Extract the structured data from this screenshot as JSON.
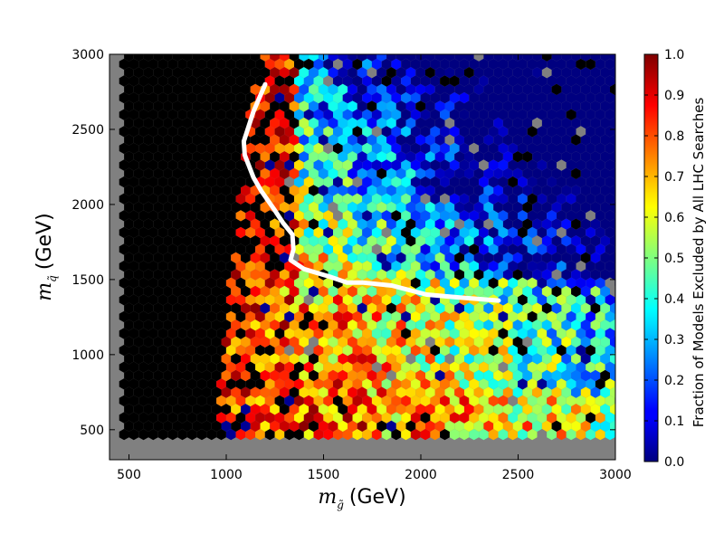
{
  "chart_data": {
    "type": "heatmap",
    "subtype": "hexbin",
    "title": "",
    "xlabel": {
      "symbol": "m",
      "subscript": "g̃",
      "unit": "(GeV)"
    },
    "ylabel": {
      "symbol": "m",
      "subscript": "q̃",
      "unit": "(GeV)"
    },
    "xlim": [
      400,
      3000
    ],
    "ylim": [
      300,
      3000
    ],
    "x_ticks": [
      "500",
      "1000",
      "1500",
      "2000",
      "2500",
      "3000"
    ],
    "y_ticks": [
      "500",
      "1000",
      "1500",
      "2000",
      "2500",
      "3000"
    ],
    "grid": false,
    "background_color": "#808080",
    "colorbar": {
      "label": "Fraction of Models Excluded by All LHC Searches",
      "range": [
        0.0,
        1.0
      ],
      "ticks": [
        "0.0",
        "0.1",
        "0.2",
        "0.3",
        "0.4",
        "0.5",
        "0.6",
        "0.7",
        "0.8",
        "0.9",
        "1.0"
      ],
      "colormap": "jet"
    },
    "boundary_curve": {
      "color": "#ffffff",
      "points": [
        [
          1200,
          2800
        ],
        [
          1140,
          2620
        ],
        [
          1090,
          2420
        ],
        [
          1095,
          2330
        ],
        [
          1140,
          2180
        ],
        [
          1180,
          2090
        ],
        [
          1250,
          1960
        ],
        [
          1290,
          1880
        ],
        [
          1340,
          1800
        ],
        [
          1345,
          1700
        ],
        [
          1330,
          1630
        ],
        [
          1400,
          1570
        ],
        [
          1530,
          1520
        ],
        [
          1620,
          1480
        ],
        [
          1700,
          1480
        ],
        [
          1850,
          1460
        ],
        [
          2030,
          1400
        ],
        [
          2200,
          1380
        ],
        [
          2400,
          1360
        ]
      ]
    }
  }
}
